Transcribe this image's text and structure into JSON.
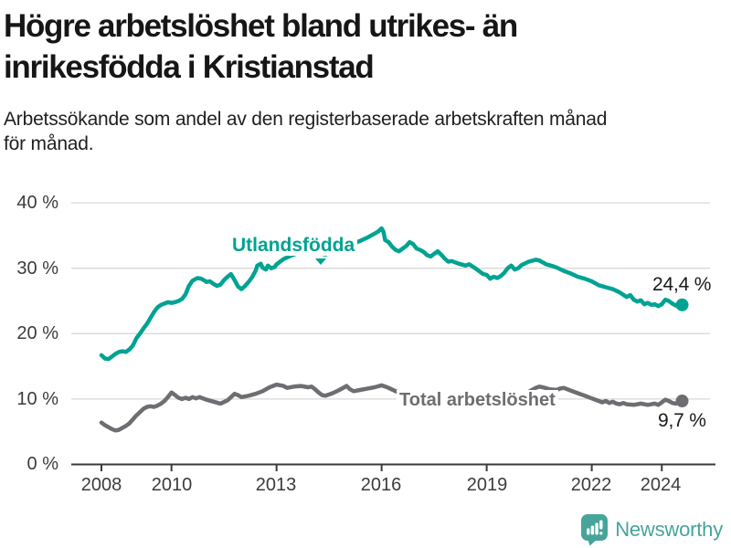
{
  "header": {
    "title": "Högre arbetslöshet bland utrikes- än inrikesfödda i Kristianstad",
    "title_lines": [
      "Högre arbetslöshet bland utrikes- än",
      "inrikesfödda i Kristianstad"
    ],
    "subtitle": "Arbetssökande som andel av den registerbaserade arbetskraften månad för månad.",
    "subtitle_lines": [
      "Arbetssökande som andel av den registerbaserade arbetskraften månad",
      "för månad."
    ]
  },
  "chart_data": {
    "type": "line",
    "title": "Högre arbetslöshet bland utrikes- än inrikesfödda i Kristianstad",
    "subtitle": "Arbetssökande som andel av den registerbaserade arbetskraften månad för månad.",
    "grid": true,
    "x_axis": {
      "range": [
        2007.2,
        2025.6
      ],
      "ticks": [
        2008,
        2010,
        2013,
        2016,
        2019,
        2022,
        2024
      ],
      "tick_labels": [
        "2008",
        "2010",
        "2013",
        "2016",
        "2019",
        "2022",
        "2024"
      ]
    },
    "y_axis": {
      "unit": "%",
      "range": [
        0,
        40
      ],
      "ticks": [
        0,
        10,
        20,
        30,
        40
      ],
      "tick_labels_top_down": [
        "40 %",
        "30 %",
        "20 %",
        "10 %",
        "0 %"
      ]
    },
    "series": [
      {
        "name": "Utlandsfödda",
        "color": "#00a392",
        "end_value": 24.4,
        "end_label": "24,4 %",
        "points": [
          [
            2008.0,
            16.7
          ],
          [
            2008.1,
            16.2
          ],
          [
            2008.2,
            16.1
          ],
          [
            2008.3,
            16.5
          ],
          [
            2008.4,
            16.9
          ],
          [
            2008.5,
            17.2
          ],
          [
            2008.6,
            17.3
          ],
          [
            2008.7,
            17.2
          ],
          [
            2008.8,
            17.6
          ],
          [
            2008.9,
            18.2
          ],
          [
            2009.0,
            19.3
          ],
          [
            2009.1,
            20.0
          ],
          [
            2009.2,
            20.8
          ],
          [
            2009.3,
            21.5
          ],
          [
            2009.4,
            22.4
          ],
          [
            2009.5,
            23.3
          ],
          [
            2009.6,
            24.0
          ],
          [
            2009.7,
            24.4
          ],
          [
            2009.8,
            24.6
          ],
          [
            2009.9,
            24.8
          ],
          [
            2010.0,
            24.7
          ],
          [
            2010.1,
            24.8
          ],
          [
            2010.2,
            25.0
          ],
          [
            2010.3,
            25.3
          ],
          [
            2010.4,
            26.0
          ],
          [
            2010.5,
            27.3
          ],
          [
            2010.6,
            28.1
          ],
          [
            2010.7,
            28.4
          ],
          [
            2010.75,
            28.5
          ],
          [
            2010.85,
            28.4
          ],
          [
            2010.95,
            28.1
          ],
          [
            2011.0,
            27.9
          ],
          [
            2011.1,
            28.0
          ],
          [
            2011.2,
            27.6
          ],
          [
            2011.3,
            27.3
          ],
          [
            2011.4,
            27.5
          ],
          [
            2011.5,
            28.2
          ],
          [
            2011.6,
            28.7
          ],
          [
            2011.7,
            29.1
          ],
          [
            2011.8,
            28.2
          ],
          [
            2011.9,
            27.2
          ],
          [
            2012.0,
            26.8
          ],
          [
            2012.1,
            27.3
          ],
          [
            2012.2,
            27.9
          ],
          [
            2012.3,
            28.6
          ],
          [
            2012.4,
            29.6
          ],
          [
            2012.45,
            30.4
          ],
          [
            2012.55,
            30.7
          ],
          [
            2012.6,
            30.1
          ],
          [
            2012.7,
            29.8
          ],
          [
            2012.75,
            30.4
          ],
          [
            2012.85,
            30.0
          ],
          [
            2012.95,
            30.2
          ],
          [
            2013.0,
            30.6
          ],
          [
            2013.2,
            31.4
          ],
          [
            2013.4,
            31.9
          ],
          [
            2013.6,
            32.3
          ],
          [
            2013.8,
            32.3
          ],
          [
            2014.0,
            32.6
          ],
          [
            2014.2,
            32.3
          ],
          [
            2014.4,
            32.1
          ],
          [
            2014.6,
            32.5
          ],
          [
            2014.8,
            33.0
          ],
          [
            2015.0,
            33.4
          ],
          [
            2015.2,
            33.8
          ],
          [
            2015.4,
            34.2
          ],
          [
            2015.6,
            34.7
          ],
          [
            2015.8,
            35.3
          ],
          [
            2015.9,
            35.6
          ],
          [
            2016.0,
            36.1
          ],
          [
            2016.05,
            35.6
          ],
          [
            2016.1,
            34.3
          ],
          [
            2016.2,
            34.0
          ],
          [
            2016.3,
            33.3
          ],
          [
            2016.4,
            32.8
          ],
          [
            2016.5,
            32.6
          ],
          [
            2016.6,
            33.0
          ],
          [
            2016.7,
            33.4
          ],
          [
            2016.8,
            34.0
          ],
          [
            2016.9,
            33.7
          ],
          [
            2017.0,
            33.0
          ],
          [
            2017.1,
            32.8
          ],
          [
            2017.2,
            32.5
          ],
          [
            2017.3,
            32.0
          ],
          [
            2017.4,
            31.8
          ],
          [
            2017.5,
            32.2
          ],
          [
            2017.6,
            32.6
          ],
          [
            2017.7,
            32.1
          ],
          [
            2017.8,
            31.5
          ],
          [
            2017.9,
            31.0
          ],
          [
            2018.0,
            31.1
          ],
          [
            2018.2,
            30.7
          ],
          [
            2018.4,
            30.4
          ],
          [
            2018.5,
            30.6
          ],
          [
            2018.7,
            29.9
          ],
          [
            2018.9,
            29.1
          ],
          [
            2019.0,
            29.0
          ],
          [
            2019.1,
            28.4
          ],
          [
            2019.2,
            28.7
          ],
          [
            2019.3,
            28.5
          ],
          [
            2019.4,
            28.8
          ],
          [
            2019.5,
            29.3
          ],
          [
            2019.6,
            30.0
          ],
          [
            2019.7,
            30.4
          ],
          [
            2019.8,
            29.8
          ],
          [
            2019.9,
            30.0
          ],
          [
            2020.0,
            30.5
          ],
          [
            2020.2,
            31.0
          ],
          [
            2020.4,
            31.3
          ],
          [
            2020.5,
            31.2
          ],
          [
            2020.7,
            30.6
          ],
          [
            2020.9,
            30.3
          ],
          [
            2021.0,
            30.1
          ],
          [
            2021.2,
            29.6
          ],
          [
            2021.4,
            29.2
          ],
          [
            2021.6,
            28.7
          ],
          [
            2021.8,
            28.4
          ],
          [
            2022.0,
            28.0
          ],
          [
            2022.2,
            27.4
          ],
          [
            2022.4,
            27.1
          ],
          [
            2022.6,
            26.8
          ],
          [
            2022.8,
            26.3
          ],
          [
            2023.0,
            25.6
          ],
          [
            2023.1,
            25.9
          ],
          [
            2023.2,
            25.2
          ],
          [
            2023.3,
            24.9
          ],
          [
            2023.4,
            25.1
          ],
          [
            2023.5,
            24.5
          ],
          [
            2023.6,
            24.7
          ],
          [
            2023.7,
            24.4
          ],
          [
            2023.8,
            24.5
          ],
          [
            2023.9,
            24.2
          ],
          [
            2024.0,
            24.5
          ],
          [
            2024.1,
            25.2
          ],
          [
            2024.2,
            25.0
          ],
          [
            2024.3,
            24.6
          ],
          [
            2024.4,
            24.3
          ],
          [
            2024.5,
            24.2
          ],
          [
            2024.58,
            24.4
          ]
        ]
      },
      {
        "name": "Total arbetslöshet",
        "color": "#6e6d71",
        "end_value": 9.7,
        "end_label": "9,7 %",
        "points": [
          [
            2008.0,
            6.4
          ],
          [
            2008.1,
            6.0
          ],
          [
            2008.2,
            5.7
          ],
          [
            2008.3,
            5.4
          ],
          [
            2008.4,
            5.2
          ],
          [
            2008.5,
            5.3
          ],
          [
            2008.6,
            5.6
          ],
          [
            2008.7,
            5.9
          ],
          [
            2008.8,
            6.3
          ],
          [
            2008.9,
            6.9
          ],
          [
            2009.0,
            7.5
          ],
          [
            2009.1,
            8.0
          ],
          [
            2009.2,
            8.5
          ],
          [
            2009.3,
            8.8
          ],
          [
            2009.4,
            8.9
          ],
          [
            2009.5,
            8.8
          ],
          [
            2009.6,
            9.0
          ],
          [
            2009.7,
            9.3
          ],
          [
            2009.8,
            9.7
          ],
          [
            2009.9,
            10.3
          ],
          [
            2010.0,
            11.0
          ],
          [
            2010.1,
            10.6
          ],
          [
            2010.2,
            10.2
          ],
          [
            2010.3,
            10.0
          ],
          [
            2010.4,
            10.2
          ],
          [
            2010.5,
            10.0
          ],
          [
            2010.6,
            10.3
          ],
          [
            2010.7,
            10.1
          ],
          [
            2010.8,
            10.3
          ],
          [
            2010.9,
            10.1
          ],
          [
            2011.0,
            9.9
          ],
          [
            2011.2,
            9.6
          ],
          [
            2011.4,
            9.3
          ],
          [
            2011.6,
            9.8
          ],
          [
            2011.8,
            10.8
          ],
          [
            2011.9,
            10.6
          ],
          [
            2012.0,
            10.3
          ],
          [
            2012.2,
            10.5
          ],
          [
            2012.4,
            10.8
          ],
          [
            2012.6,
            11.2
          ],
          [
            2012.8,
            11.8
          ],
          [
            2013.0,
            12.2
          ],
          [
            2013.2,
            12.0
          ],
          [
            2013.3,
            11.7
          ],
          [
            2013.5,
            11.9
          ],
          [
            2013.7,
            12.0
          ],
          [
            2013.9,
            11.8
          ],
          [
            2014.0,
            11.9
          ],
          [
            2014.1,
            11.5
          ],
          [
            2014.2,
            11.0
          ],
          [
            2014.3,
            10.6
          ],
          [
            2014.4,
            10.5
          ],
          [
            2014.6,
            10.9
          ],
          [
            2014.8,
            11.4
          ],
          [
            2015.0,
            12.0
          ],
          [
            2015.1,
            11.5
          ],
          [
            2015.2,
            11.2
          ],
          [
            2015.4,
            11.4
          ],
          [
            2015.6,
            11.6
          ],
          [
            2015.8,
            11.8
          ],
          [
            2016.0,
            12.1
          ],
          [
            2016.1,
            11.9
          ],
          [
            2016.2,
            11.7
          ],
          [
            2016.4,
            11.2
          ],
          [
            2016.6,
            10.7
          ],
          [
            2016.8,
            10.4
          ],
          [
            2017.0,
            10.3
          ],
          [
            2017.3,
            10.1
          ],
          [
            2017.6,
            9.9
          ],
          [
            2018.0,
            9.8
          ],
          [
            2018.4,
            9.6
          ],
          [
            2018.8,
            9.4
          ],
          [
            2019.0,
            9.4
          ],
          [
            2019.3,
            9.3
          ],
          [
            2019.6,
            9.5
          ],
          [
            2019.8,
            9.9
          ],
          [
            2020.0,
            10.3
          ],
          [
            2020.2,
            11.1
          ],
          [
            2020.4,
            11.7
          ],
          [
            2020.5,
            11.9
          ],
          [
            2020.6,
            11.8
          ],
          [
            2020.8,
            11.5
          ],
          [
            2021.0,
            11.4
          ],
          [
            2021.1,
            11.6
          ],
          [
            2021.2,
            11.7
          ],
          [
            2021.4,
            11.3
          ],
          [
            2021.6,
            10.9
          ],
          [
            2021.8,
            10.5
          ],
          [
            2022.0,
            10.1
          ],
          [
            2022.1,
            9.9
          ],
          [
            2022.2,
            9.7
          ],
          [
            2022.3,
            9.5
          ],
          [
            2022.4,
            9.7
          ],
          [
            2022.5,
            9.4
          ],
          [
            2022.6,
            9.6
          ],
          [
            2022.7,
            9.3
          ],
          [
            2022.8,
            9.2
          ],
          [
            2022.9,
            9.4
          ],
          [
            2023.0,
            9.2
          ],
          [
            2023.2,
            9.1
          ],
          [
            2023.4,
            9.3
          ],
          [
            2023.6,
            9.1
          ],
          [
            2023.8,
            9.3
          ],
          [
            2023.9,
            9.1
          ],
          [
            2024.0,
            9.5
          ],
          [
            2024.1,
            9.9
          ],
          [
            2024.2,
            9.7
          ],
          [
            2024.3,
            9.4
          ],
          [
            2024.4,
            9.3
          ],
          [
            2024.5,
            9.5
          ],
          [
            2024.58,
            9.7
          ]
        ]
      }
    ],
    "colors": {
      "utlandsfodda": "#00a392",
      "total": "#6e6d71",
      "gridline": "#d9d9d9",
      "axis": "#3a3a3a",
      "text": "#1a1a1a"
    }
  },
  "branding": {
    "logo_text": "Newsworthy",
    "logo_color": "#47a49b"
  }
}
